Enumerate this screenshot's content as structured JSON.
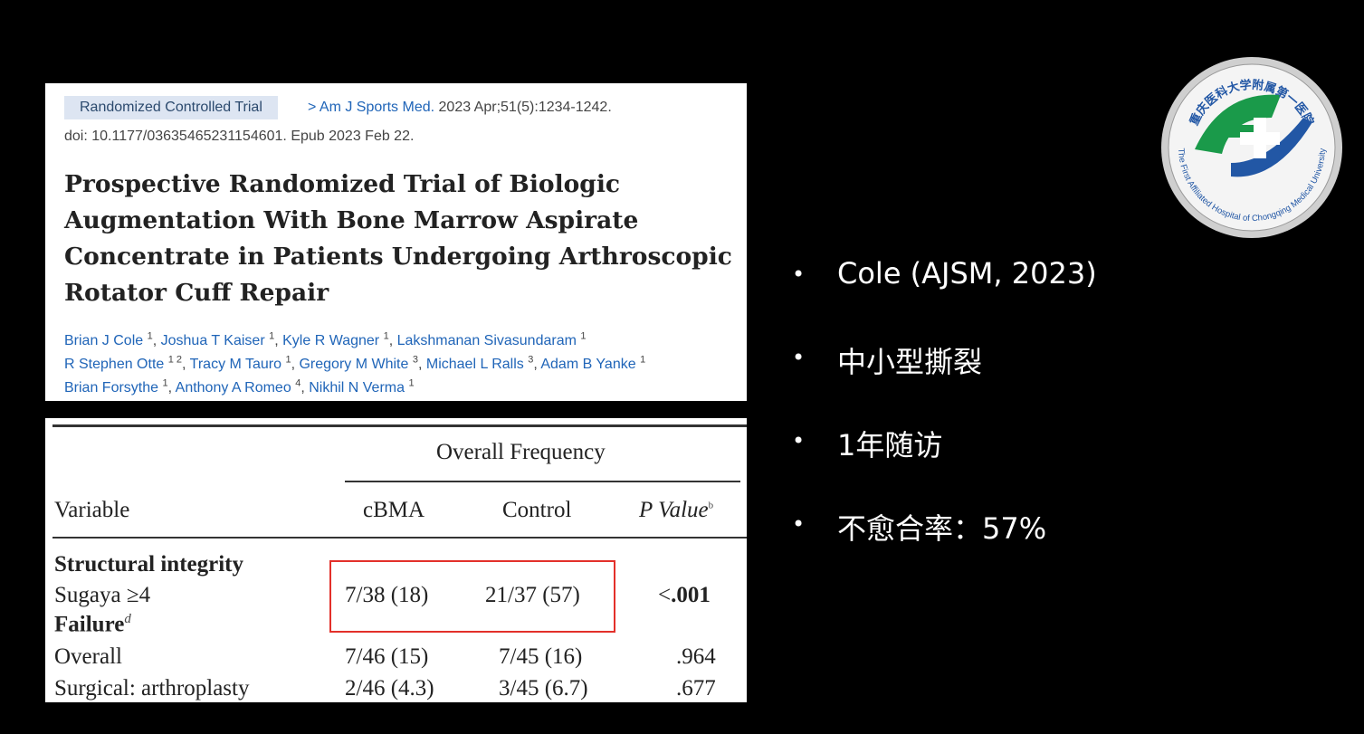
{
  "article": {
    "badge": "Randomized Controlled Trial",
    "journal": "Am J Sports Med.",
    "citation": "2023 Apr;51(5):1234-1242.",
    "doi": "doi: 10.1177/03635465231154601. Epub 2023 Feb 22.",
    "title": "Prospective Randomized Trial of Biologic Augmentation With Bone Marrow Aspirate Concentrate in Patients Undergoing Arthroscopic Rotator Cuff Repair",
    "author_lines": [
      [
        {
          "name": "Brian J Cole",
          "affil": "1"
        },
        {
          "name": "Joshua T Kaiser",
          "affil": "1"
        },
        {
          "name": "Kyle R Wagner",
          "affil": "1"
        },
        {
          "name": "Lakshmanan Sivasundaram",
          "affil": "1"
        }
      ],
      [
        {
          "name": "R Stephen Otte",
          "affil": "1 2"
        },
        {
          "name": "Tracy M Tauro",
          "affil": "1"
        },
        {
          "name": "Gregory M White",
          "affil": "3"
        },
        {
          "name": "Michael L Ralls",
          "affil": "3"
        },
        {
          "name": "Adam B Yanke",
          "affil": "1"
        }
      ],
      [
        {
          "name": "Brian Forsythe",
          "affil": "1"
        },
        {
          "name": "Anthony A Romeo",
          "affil": "4"
        },
        {
          "name": "Nikhil N Verma",
          "affil": "1"
        }
      ]
    ]
  },
  "table": {
    "group_header": "Overall Frequency",
    "columns": [
      "Variable",
      "cBMA",
      "Control",
      "P Value"
    ],
    "p_note": "b",
    "section1": "Structural integrity",
    "row1": {
      "label": "Sugaya ≥4",
      "cbma": "7/38 (18)",
      "control": "21/37 (57)",
      "p_prefix": "<",
      "p": ".001"
    },
    "section2": "Failure",
    "section2_note": "d",
    "rows": [
      [
        "Overall",
        "7/46 (15)",
        "7/45 (16)",
        ".964"
      ],
      [
        "Surgical: arthroplasty",
        "2/46 (4.3)",
        "3/45 (6.7)",
        ".677"
      ]
    ]
  },
  "bullets": [
    "Cole (AJSM, 2023)",
    "中小型撕裂",
    "1年随访",
    "不愈合率：57%"
  ],
  "logo": {
    "cn": "重庆医科大学附属第一医院",
    "en": "The First Affiliated Hospital of Chongqing Medical University"
  }
}
